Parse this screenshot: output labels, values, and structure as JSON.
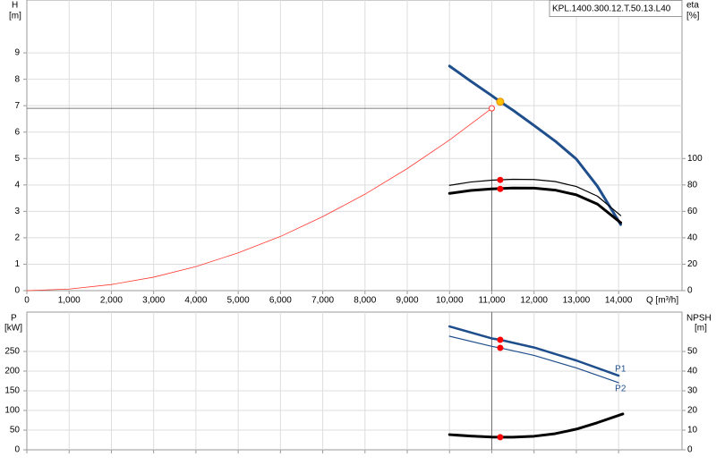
{
  "chart_data": [
    {
      "type": "line",
      "title": "KPL.1400.300.12.T.50.13.L40",
      "y_label": "H",
      "y_unit": "[m]",
      "y2_label": "eta",
      "y2_unit": "[%]",
      "x_label": "Q [m³/h]",
      "xlim": [
        0,
        15500
      ],
      "ylim": [
        0,
        11
      ],
      "y2lim": [
        0,
        220
      ],
      "xticks": [
        0,
        {
          "value": 1000,
          "label": "1,000"
        },
        {
          "value": 2000,
          "label": "2,000"
        },
        {
          "value": 3000,
          "label": "3,000"
        },
        {
          "value": 4000,
          "label": "4,000"
        },
        {
          "value": 5000,
          "label": "5,000"
        },
        {
          "value": 6000,
          "label": "6,000"
        },
        {
          "value": 7000,
          "label": "7,000"
        },
        {
          "value": 8000,
          "label": "8,000"
        },
        {
          "value": 9000,
          "label": "9,000"
        },
        {
          "value": 10000,
          "label": "10,000"
        },
        {
          "value": 11000,
          "label": "11,000"
        },
        {
          "value": 12000,
          "label": "12,000"
        },
        {
          "value": 13000,
          "label": "13,000"
        },
        {
          "value": 14000,
          "label": "14,000"
        }
      ],
      "yticks": [
        0,
        1,
        2,
        3,
        4,
        5,
        6,
        7,
        8,
        9
      ],
      "y2ticks": [
        0,
        20,
        40,
        60,
        80,
        100
      ],
      "grid": true,
      "series": [
        {
          "color": "#ff3a30",
          "width": 0.8,
          "x": [
            0,
            1000,
            2000,
            3000,
            4000,
            5000,
            6000,
            7000,
            8000,
            9000,
            10000,
            11000
          ],
          "values": [
            0,
            0.06,
            0.23,
            0.51,
            0.91,
            1.43,
            2.05,
            2.8,
            3.65,
            4.62,
            5.7,
            6.9
          ]
        },
        {
          "color": "#1f4e8c",
          "width": 3,
          "x": [
            10000,
            10500,
            11000,
            11200,
            11500,
            12000,
            12500,
            13000,
            13500,
            14050
          ],
          "values": [
            8.5,
            7.93,
            7.38,
            7.15,
            6.83,
            6.25,
            5.66,
            4.98,
            3.95,
            2.5
          ],
          "marker": {
            "x": 11200,
            "y": 7.15,
            "color": "#ffc000"
          }
        },
        {
          "color": "#000000",
          "width": 1.2,
          "axis": "y2",
          "x": [
            10000,
            10500,
            11000,
            11500,
            12000,
            12500,
            13000,
            13500,
            14050
          ],
          "values": [
            79.7,
            82.2,
            83.6,
            84.3,
            84.1,
            82.6,
            78.8,
            71.5,
            56.8
          ],
          "marker": {
            "x": 11200,
            "y": 83.8,
            "color": "#ff0000"
          }
        },
        {
          "color": "#000000",
          "width": 3,
          "axis": "y2",
          "x": [
            10000,
            10500,
            11000,
            11500,
            12000,
            12500,
            13000,
            13500,
            14050
          ],
          "values": [
            73.6,
            75.8,
            77.0,
            77.7,
            77.6,
            76.1,
            72.5,
            65.5,
            51.4
          ],
          "marker": {
            "x": 11200,
            "y": 77.0,
            "color": "#ff0000"
          }
        }
      ],
      "duty_point": {
        "x": 11000,
        "y": 6.9,
        "color": "#ff3a30"
      }
    },
    {
      "type": "line",
      "y_label": "P",
      "y_unit": "[kW]",
      "y2_label": "NPSH",
      "y2_unit": "[m]",
      "xlim": [
        0,
        15500
      ],
      "ylim": [
        0,
        350
      ],
      "y2lim": [
        0,
        70
      ],
      "yticks": [
        0,
        50,
        100,
        150,
        200,
        250
      ],
      "y2ticks": [
        0,
        10,
        20,
        30,
        40,
        50
      ],
      "grid": true,
      "series": [
        {
          "name": "P1",
          "color": "#1f4e8c",
          "width": 2.5,
          "x": [
            10000,
            11000,
            11200,
            12000,
            13000,
            14000
          ],
          "values": [
            313.6,
            283,
            279.5,
            260,
            227,
            188.6
          ],
          "marker": {
            "x": 11200,
            "y": 279.5,
            "color": "#ff0000"
          }
        },
        {
          "name": "P2",
          "color": "#1f4e8c",
          "width": 1.2,
          "x": [
            10000,
            11000,
            11200,
            12000,
            13000,
            14000
          ],
          "values": [
            288.6,
            263,
            259,
            240,
            208,
            170.5
          ],
          "marker": {
            "x": 11200,
            "y": 259,
            "color": "#ff0000"
          }
        },
        {
          "color": "#000000",
          "width": 3,
          "axis": "y2",
          "x": [
            10000,
            10500,
            11000,
            11200,
            11500,
            12000,
            12500,
            13000,
            13500,
            14100
          ],
          "values": [
            7.7,
            7.0,
            6.5,
            6.4,
            6.4,
            6.9,
            8.2,
            10.5,
            13.8,
            18.2
          ],
          "marker": {
            "x": 11200,
            "y": 6.4,
            "color": "#ff0000"
          }
        }
      ]
    }
  ]
}
